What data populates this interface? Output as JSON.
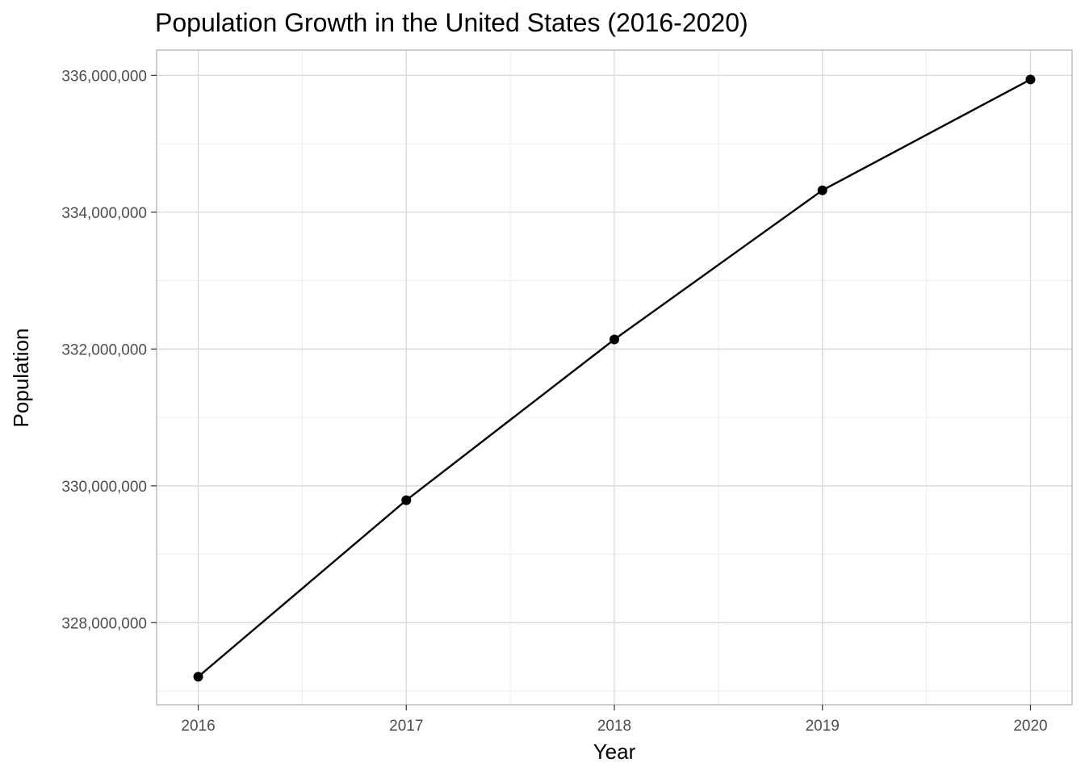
{
  "chart_data": {
    "type": "line",
    "title": "Population Growth in the United States (2016-2020)",
    "xlabel": "Year",
    "ylabel": "Population",
    "x": [
      2016,
      2017,
      2018,
      2019,
      2020
    ],
    "series": [
      {
        "values": [
          327210000,
          329790000,
          332140000,
          334320000,
          335940000
        ]
      }
    ],
    "xlim": [
      2015.8,
      2020.2
    ],
    "ylim": [
      326800000,
      336370000
    ],
    "x_ticks": [
      2016,
      2017,
      2018,
      2019,
      2020
    ],
    "x_tick_labels": [
      "2016",
      "2017",
      "2018",
      "2019",
      "2020"
    ],
    "y_ticks": [
      328000000,
      330000000,
      332000000,
      334000000,
      336000000
    ],
    "y_tick_labels": [
      "328,000,000",
      "330,000,000",
      "332,000,000",
      "334,000,000",
      "336,000,000"
    ],
    "grid": true,
    "legend": "none",
    "colors": {
      "line": "#000000",
      "points": "#000000",
      "grid": "#d9d9d9",
      "panel_border": "#b3b3b3"
    }
  }
}
